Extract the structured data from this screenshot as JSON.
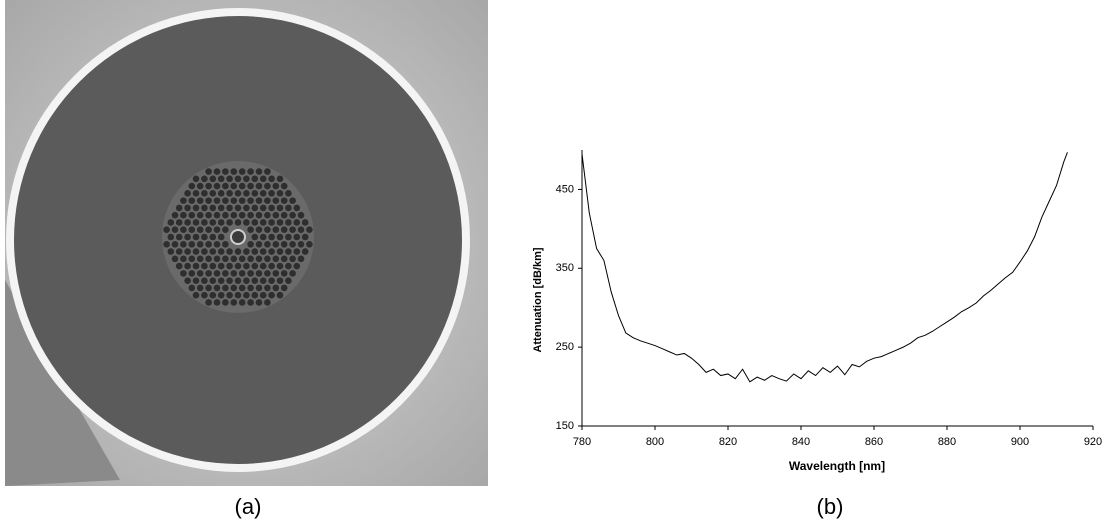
{
  "chart_data": {
    "type": "line",
    "x_label": "Wavelength [nm]",
    "y_label": "Attenuation [dB/km]",
    "x": [
      780,
      782,
      784,
      786,
      788,
      790,
      792,
      794,
      796,
      798,
      800,
      802,
      804,
      806,
      808,
      810,
      812,
      814,
      816,
      818,
      820,
      822,
      824,
      826,
      828,
      830,
      832,
      834,
      836,
      838,
      840,
      842,
      844,
      846,
      848,
      850,
      852,
      854,
      856,
      858,
      860,
      862,
      864,
      866,
      868,
      870,
      872,
      874,
      876,
      878,
      880,
      882,
      884,
      886,
      888,
      890,
      892,
      894,
      896,
      898,
      900,
      902,
      904,
      906,
      908,
      910,
      912,
      913
    ],
    "series": [
      {
        "color": "#000000",
        "values": [
          495,
          420,
          375,
          360,
          320,
          290,
          268,
          262,
          258,
          255,
          252,
          248,
          244,
          240,
          242,
          236,
          228,
          218,
          222,
          214,
          216,
          210,
          222,
          206,
          212,
          208,
          214,
          210,
          207,
          216,
          210,
          220,
          214,
          224,
          218,
          226,
          215,
          228,
          225,
          232,
          236,
          238,
          242,
          246,
          250,
          255,
          262,
          265,
          270,
          276,
          282,
          288,
          295,
          300,
          306,
          315,
          322,
          330,
          338,
          345,
          358,
          372,
          390,
          415,
          435,
          455,
          485,
          497
        ]
      }
    ],
    "xlim": [
      780,
      920
    ],
    "xticks": [
      780,
      800,
      820,
      840,
      860,
      880,
      900,
      920
    ],
    "ylim": [
      150,
      500
    ],
    "yticks": [
      150,
      250,
      350,
      450
    ]
  },
  "panels": {
    "a": "(a)",
    "b": "(b)"
  }
}
